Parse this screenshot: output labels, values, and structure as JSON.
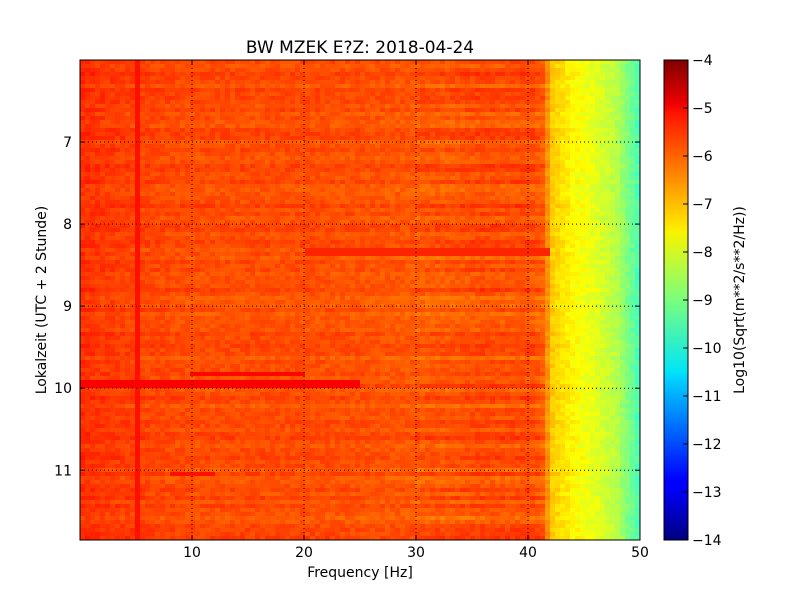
{
  "chart_data": {
    "type": "heatmap",
    "title": "BW MZEK E?Z: 2018-04-24",
    "xlabel": "Frequency [Hz]",
    "ylabel": "Lokalzeit (UTC + 2 Stunde)",
    "colorbar_label": "Log10(Sqrt(m**2/s**2/Hz))",
    "xlim": [
      0,
      50
    ],
    "ylim": [
      11.85,
      6.0
    ],
    "y_inverted": true,
    "x_ticks": [
      10,
      20,
      30,
      40,
      50
    ],
    "x_tick_labels": [
      "10",
      "20",
      "30",
      "40",
      "50"
    ],
    "y_ticks": [
      7,
      8,
      9,
      10,
      11
    ],
    "y_tick_labels": [
      "7",
      "8",
      "9",
      "10",
      "11"
    ],
    "color_range": [
      -14,
      -4
    ],
    "colorbar_ticks": [
      -4,
      -5,
      -6,
      -7,
      -8,
      -9,
      -10,
      -11,
      -12,
      -13,
      -14
    ],
    "colorbar_tick_labels": [
      "−4",
      "−5",
      "−6",
      "−7",
      "−8",
      "−9",
      "−10",
      "−11",
      "−12",
      "−13",
      "−14"
    ],
    "colormap": "jet",
    "grid": true,
    "grid_style": "dotted",
    "frequency_profile": {
      "frequency_hz": [
        0,
        2,
        5,
        10,
        15,
        20,
        25,
        30,
        33,
        36,
        38,
        40,
        41.5,
        42,
        44,
        46,
        48,
        50
      ],
      "log10_amplitude": [
        -5.7,
        -5.8,
        -5.9,
        -6.0,
        -6.0,
        -6.0,
        -6.05,
        -6.1,
        -6.1,
        -6.0,
        -6.05,
        -6.0,
        -6.2,
        -7.2,
        -7.7,
        -8.0,
        -8.5,
        -9.6
      ]
    },
    "time_features": [
      {
        "time_h": 9.95,
        "freq_range_hz": [
          0,
          25
        ],
        "log10_amplitude": -5.2
      },
      {
        "time_h": 9.82,
        "freq_range_hz": [
          10,
          20
        ],
        "log10_amplitude": -5.3
      },
      {
        "time_h": 11.05,
        "freq_range_hz": [
          8,
          12
        ],
        "log10_amplitude": -5.4
      },
      {
        "time_h": 8.35,
        "freq_range_hz": [
          20,
          42
        ],
        "log10_amplitude": -5.6
      }
    ],
    "line_features": [
      {
        "freq_hz": 5,
        "log10_amplitude": -5.4
      }
    ]
  }
}
